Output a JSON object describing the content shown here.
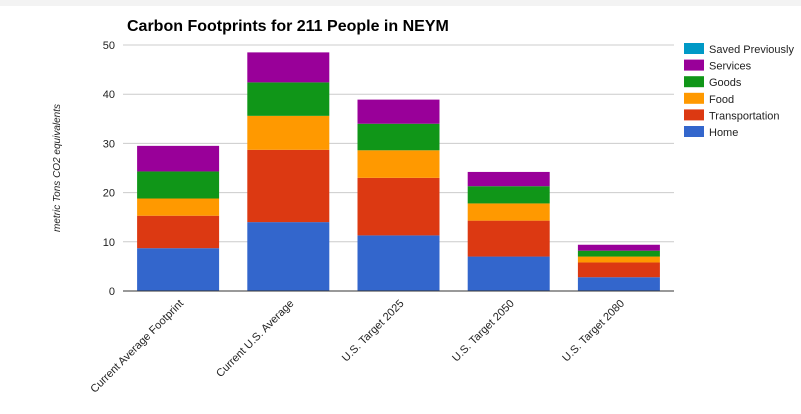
{
  "chart_data": {
    "type": "bar",
    "stacked": true,
    "title": "Carbon Footprints for 211 People in NEYM",
    "xlabel": "",
    "ylabel": "metric Tons CO2 equivalents",
    "ylim": [
      0,
      50
    ],
    "yticks": [
      "0",
      "10",
      "20",
      "30",
      "40",
      "50"
    ],
    "grid": true,
    "legend_position": "right",
    "categories": [
      "Current Average Footprint",
      "Current U.S. Average",
      "U.S. Target 2025",
      "U.S. Target 2050",
      "U.S. Target 2080"
    ],
    "series": [
      {
        "name": "Home",
        "color": "#3366cc",
        "values": [
          8.7,
          14.0,
          11.3,
          7.0,
          2.8
        ]
      },
      {
        "name": "Transportation",
        "color": "#dc3912",
        "values": [
          6.6,
          14.7,
          11.7,
          7.3,
          3.0
        ]
      },
      {
        "name": "Food",
        "color": "#ff9900",
        "values": [
          3.5,
          6.9,
          5.6,
          3.5,
          1.2
        ]
      },
      {
        "name": "Goods",
        "color": "#109618",
        "values": [
          5.5,
          6.8,
          5.4,
          3.5,
          1.2
        ]
      },
      {
        "name": "Services",
        "color": "#990099",
        "values": [
          5.2,
          6.1,
          4.9,
          2.9,
          1.2
        ]
      },
      {
        "name": "Saved Previously",
        "color": "#0099c6",
        "values": [
          0,
          0,
          0,
          0,
          0
        ]
      }
    ]
  }
}
